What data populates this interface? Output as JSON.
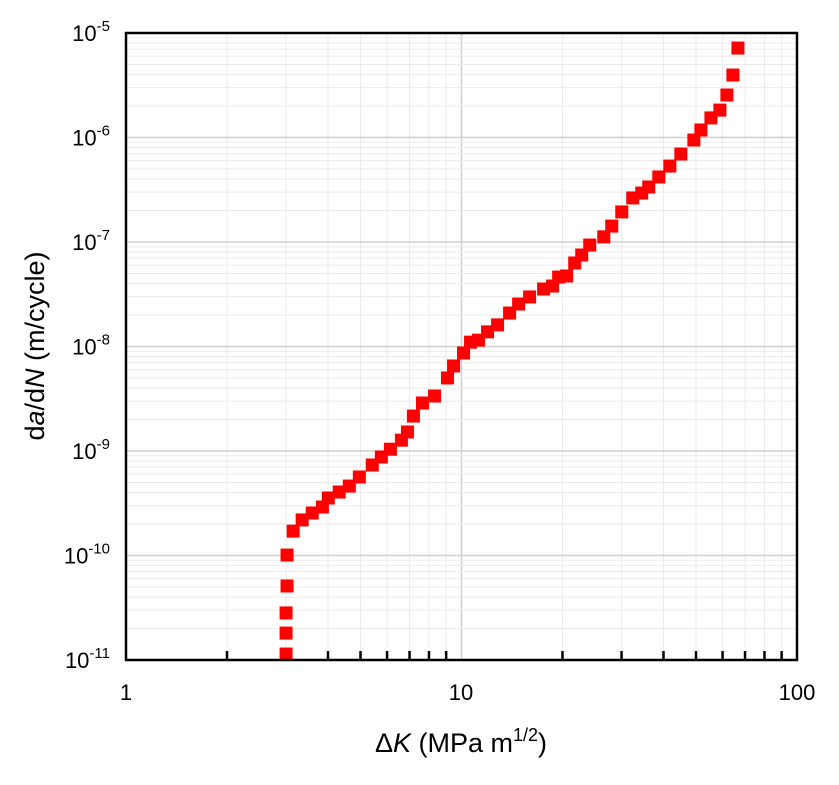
{
  "chart_data": {
    "type": "scatter",
    "title": "",
    "xlabel": {
      "prefix": "Δ",
      "var": "K",
      "unit": " (MPa m",
      "sup": "1/2",
      "close": ")"
    },
    "ylabel": {
      "d1": "d",
      "v1": "a",
      "slash": "/d",
      "v2": "N",
      "unit": " (m/cycle)"
    },
    "x_scale": "log",
    "y_scale": "log",
    "xlim": [
      1,
      100
    ],
    "ylim": [
      1e-11,
      1e-05
    ],
    "x_tick_labels": [
      "1",
      "10",
      "100"
    ],
    "y_tick_labels": [
      {
        "base": "10",
        "exp": "-5"
      },
      {
        "base": "10",
        "exp": "-6"
      },
      {
        "base": "10",
        "exp": "-7"
      },
      {
        "base": "10",
        "exp": "-8"
      },
      {
        "base": "10",
        "exp": "-9"
      },
      {
        "base": "10",
        "exp": "-10"
      },
      {
        "base": "10",
        "exp": "-11"
      }
    ],
    "grid": true,
    "marker": "square",
    "marker_color": "#ff0000",
    "series": [
      {
        "x": [
          3.0,
          3.0,
          3.0,
          3.02,
          3.02,
          3.15,
          3.35,
          3.59,
          3.85,
          4.01,
          4.32,
          4.63,
          4.96,
          5.42,
          5.77,
          6.14,
          6.62,
          6.9,
          7.19,
          7.65,
          8.31,
          9.08,
          9.47,
          10.14,
          10.64,
          11.24,
          11.96,
          12.81,
          13.91,
          14.8,
          15.96,
          17.57,
          18.69,
          19.48,
          20.58,
          21.75,
          22.82,
          24.11,
          26.55,
          28.04,
          30.04,
          32.39,
          34.45,
          36.15,
          38.73,
          41.78,
          45.06,
          49.27,
          51.7,
          55.39,
          58.91,
          61.81,
          64.42,
          66.67
        ],
        "y": [
          1.14e-11,
          1.81e-11,
          2.82e-11,
          5.11e-11,
          1.01e-10,
          1.71e-10,
          2.19e-10,
          2.55e-10,
          2.91e-10,
          3.55e-10,
          4.05e-10,
          4.62e-10,
          5.64e-10,
          7.34e-10,
          8.76e-10,
          1.04e-09,
          1.27e-09,
          1.52e-09,
          2.16e-09,
          2.88e-09,
          3.36e-09,
          5e-09,
          6.51e-09,
          8.67e-09,
          1.1e-08,
          1.15e-08,
          1.38e-08,
          1.61e-08,
          2.09e-08,
          2.55e-08,
          2.98e-08,
          3.55e-08,
          3.79e-08,
          4.62e-08,
          4.73e-08,
          6.3e-08,
          7.51e-08,
          9.35e-08,
          1.12e-07,
          1.42e-07,
          1.94e-07,
          2.64e-07,
          2.94e-07,
          3.36e-07,
          4.19e-07,
          5.33e-07,
          6.95e-07,
          9.46e-07,
          1.18e-06,
          1.54e-06,
          1.83e-06,
          2.55e-06,
          3.96e-06,
          7.18e-06
        ]
      }
    ]
  }
}
